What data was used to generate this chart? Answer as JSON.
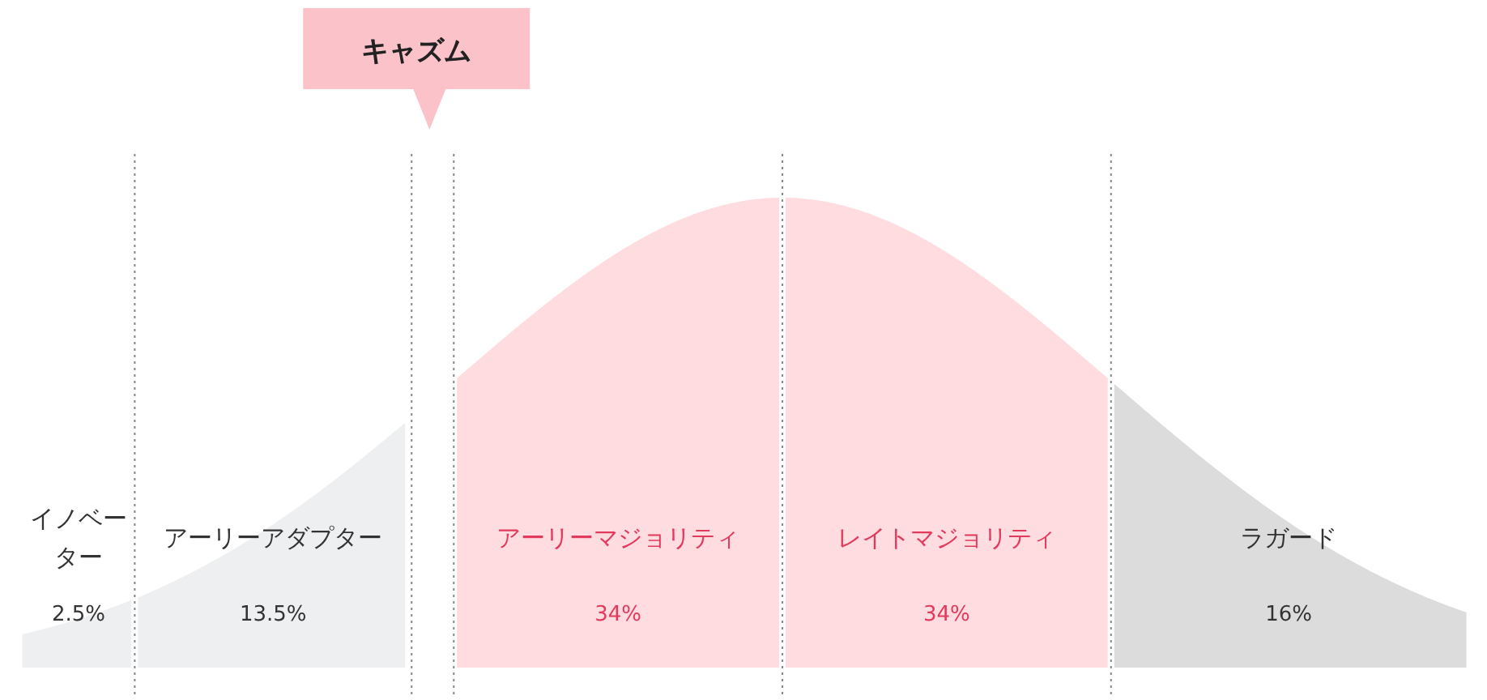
{
  "chart_data": {
    "type": "other",
    "categories": [
      "イノベーター",
      "アーリーアダプター",
      "アーリーマジョリティ",
      "レイトマジョリティ",
      "ラガード"
    ],
    "values": [
      2.5,
      13.5,
      34,
      34,
      16
    ],
    "value_labels": [
      "2.5%",
      "13.5%",
      "34%",
      "34%",
      "16%"
    ],
    "colors": [
      "#eeeff0",
      "#eeeff0",
      "#ffdce0",
      "#ffdce0",
      "#dcdcdc"
    ],
    "annotations": [
      "キャズム"
    ]
  }
}
